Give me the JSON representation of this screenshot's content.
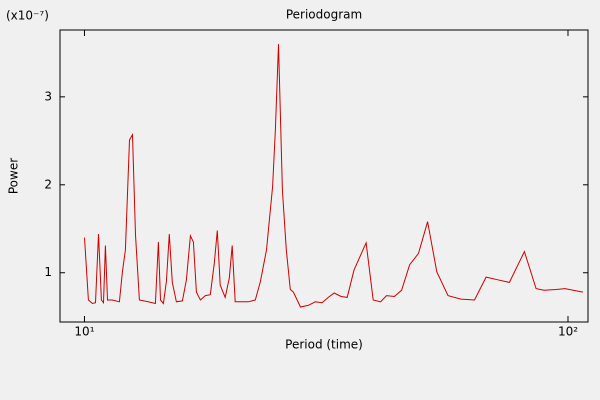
{
  "chart_data": {
    "type": "line",
    "title": "Periodogram",
    "xlabel": "Period (time)",
    "ylabel": "Power",
    "y_multiplier": "(x10⁻⁷)",
    "log_x": true,
    "xlim": [
      8.9,
      110
    ],
    "xticks": [
      {
        "value": 10,
        "label": "10¹"
      },
      {
        "value": 100,
        "label": "10²"
      }
    ],
    "ylim": [
      0.44,
      3.76
    ],
    "yticks": [
      1,
      2,
      3
    ],
    "series": [
      {
        "name": "Power",
        "color": "#cc0000",
        "x": [
          10,
          10.19,
          10.39,
          10.54,
          10.69,
          10.84,
          10.95,
          11.05,
          11.16,
          11.42,
          11.81,
          11.98,
          12.15,
          12.39,
          12.57,
          12.75,
          12.99,
          13.55,
          14.02,
          14.22,
          14.36,
          14.56,
          14.77,
          14.98,
          15.19,
          15.49,
          15.94,
          16.25,
          16.56,
          16.8,
          17.04,
          17.37,
          17.79,
          18.21,
          18.56,
          18.82,
          19.09,
          19.55,
          19.93,
          20.21,
          20.5,
          21.82,
          22.56,
          23.11,
          23.79,
          24.49,
          24.83,
          25.19,
          25.66,
          26.15,
          26.65,
          27.04,
          27.98,
          29.06,
          30.02,
          31.01,
          31.94,
          32.84,
          33.95,
          34.94,
          36.1,
          38.23,
          39.55,
          40.96,
          42.13,
          43.76,
          45.27,
          47.04,
          49.08,
          51.25,
          53.54,
          56.47,
          60.02,
          64.06,
          67.72,
          71.58,
          75.64,
          81.25,
          85.9,
          89.2,
          94.5,
          98.6,
          107.4
        ],
        "values": [
          1.4,
          0.69,
          0.65,
          0.66,
          1.44,
          0.69,
          0.66,
          1.31,
          0.69,
          0.69,
          0.67,
          1.01,
          1.26,
          2.51,
          2.57,
          1.43,
          0.69,
          0.67,
          0.65,
          1.35,
          0.69,
          0.65,
          0.9,
          1.44,
          0.89,
          0.67,
          0.68,
          0.92,
          1.42,
          1.35,
          0.78,
          0.69,
          0.74,
          0.75,
          1.11,
          1.48,
          0.86,
          0.72,
          0.94,
          1.31,
          0.67,
          0.67,
          0.69,
          0.9,
          1.26,
          1.98,
          2.63,
          3.6,
          1.94,
          1.26,
          0.81,
          0.78,
          0.61,
          0.63,
          0.67,
          0.66,
          0.72,
          0.77,
          0.73,
          0.72,
          1.03,
          1.34,
          0.69,
          0.67,
          0.74,
          0.73,
          0.8,
          1.09,
          1.22,
          1.58,
          1.01,
          0.74,
          0.7,
          0.69,
          0.95,
          0.92,
          0.89,
          1.24,
          0.82,
          0.8,
          0.81,
          0.82,
          0.78
        ]
      }
    ]
  }
}
